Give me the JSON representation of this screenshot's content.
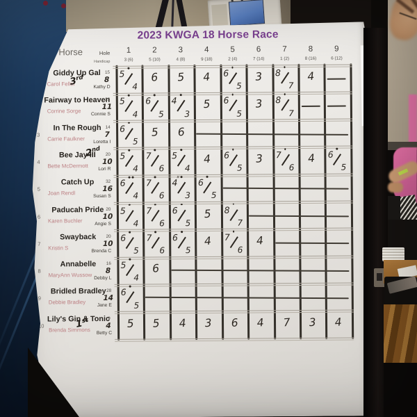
{
  "board": {
    "title": "2023 KWGA 18 Horse Race",
    "hash_header": "#",
    "horse_header": "Horse",
    "hole_label": "Hole",
    "handicap_label": "Handicap",
    "holes": [
      {
        "num": "1",
        "hcp": "3 (6)"
      },
      {
        "num": "2",
        "hcp": "5 (10)"
      },
      {
        "num": "3",
        "hcp": "4 (8)"
      },
      {
        "num": "4",
        "hcp": "9 (18)"
      },
      {
        "num": "5",
        "hcp": "2 (4)"
      },
      {
        "num": "6",
        "hcp": "7 (14)"
      },
      {
        "num": "7",
        "hcp": "1 (2)"
      },
      {
        "num": "8",
        "hcp": "8 (16)"
      },
      {
        "num": "9",
        "hcp": "6 (12)"
      }
    ],
    "rows": [
      {
        "pos": "1",
        "horse": "Giddy Up Gal",
        "owner": "Carol Feller",
        "jockey": "Kathy D",
        "place": "3rd",
        "index": "15",
        "strokes": "8",
        "cells": [
          {
            "t": "5/4",
            "dot": 1
          },
          {
            "t": "6"
          },
          {
            "t": "5"
          },
          {
            "t": "4"
          },
          {
            "t": "6/5",
            "dot": 1
          },
          {
            "t": "3"
          },
          {
            "t": "8/7",
            "dot": 1
          },
          {
            "t": "4"
          },
          {
            "dash": 1
          }
        ]
      },
      {
        "pos": "2",
        "horse": "Fairway to Heaven",
        "owner": "Corrine Sorge",
        "jockey": "Connie S",
        "index": "23",
        "strokes": "11",
        "cells": [
          {
            "t": "5/4",
            "dot": 1
          },
          {
            "t": "6/5",
            "dot": 1
          },
          {
            "t": "4/3",
            "dot": 1
          },
          {
            "t": "5"
          },
          {
            "t": "6/5",
            "dot": 1
          },
          {
            "t": "3"
          },
          {
            "t": "8/7",
            "dot": 1
          },
          {
            "dash": 1
          },
          {
            "dash": 1
          }
        ]
      },
      {
        "pos": "3",
        "horse": "In The Rough",
        "owner": "Carrie Faulkner",
        "jockey": "Loretta I",
        "index": "14",
        "strokes": "7",
        "cells": [
          {
            "t": "6/5",
            "dot": 1
          },
          {
            "t": "5"
          },
          {
            "t": "6"
          },
          {
            "strike": 1
          },
          {
            "strike": 1
          },
          {
            "strike": 1
          },
          {
            "strike": 1
          },
          {
            "strike": 1
          },
          {
            "strike": 1
          }
        ]
      },
      {
        "pos": "4",
        "horse": "Bee Jay III",
        "owner": "Bette McDermott",
        "jockey": "Lori R",
        "place": "2nd",
        "index": "20",
        "strokes": "10",
        "cells": [
          {
            "t": "5/4",
            "dot": 1
          },
          {
            "t": "7/6",
            "dot": 1
          },
          {
            "t": "5/4",
            "dot": 1
          },
          {
            "t": "4"
          },
          {
            "t": "6/5",
            "dot": 1
          },
          {
            "t": "3"
          },
          {
            "t": "7/6",
            "dot": 1
          },
          {
            "t": "4"
          },
          {
            "t": "6/5",
            "dot": 1
          }
        ]
      },
      {
        "pos": "5",
        "horse": "Catch Up",
        "owner": "Joan Rendl",
        "jockey": "Susan S",
        "index": "32",
        "strokes": "16",
        "cells": [
          {
            "t": "6/4",
            "dot": 2
          },
          {
            "t": "7/6",
            "dot": 1
          },
          {
            "t": "4/3",
            "dot": 1,
            "mark": "x"
          },
          {
            "t": "6/5",
            "dot": 1
          },
          {
            "strike": 1
          },
          {
            "strike": 1
          },
          {
            "strike": 1
          },
          {
            "strike": 1
          },
          {
            "strike": 1
          }
        ]
      },
      {
        "pos": "6",
        "horse": "Paducah Pride",
        "owner": "Karen Buchler",
        "jockey": "Angie S",
        "index": "20",
        "strokes": "10",
        "cells": [
          {
            "t": "5/4",
            "dot": 1
          },
          {
            "t": "7/6",
            "dot": 1
          },
          {
            "t": "6/5",
            "dot": 1
          },
          {
            "t": "5"
          },
          {
            "t": "8/7",
            "dot": 1
          },
          {
            "strike": 1
          },
          {
            "strike": 1
          },
          {
            "strike": 1
          },
          {
            "strike": 1
          }
        ]
      },
      {
        "pos": "7",
        "horse": "Swayback",
        "owner": "Kristin S",
        "jockey": "Brenda C",
        "index": "20",
        "strokes": "10",
        "cells": [
          {
            "t": "6/5",
            "dot": 1
          },
          {
            "t": "7/6",
            "dot": 1
          },
          {
            "t": "6/5",
            "dot": 1
          },
          {
            "t": "4"
          },
          {
            "t": "7/6",
            "dot": 1
          },
          {
            "t": "4"
          },
          {
            "strike": 1
          },
          {
            "strike": 1
          },
          {
            "strike": 1
          }
        ]
      },
      {
        "pos": "8",
        "horse": "Annabelle",
        "owner": "MaryAnn Wussow",
        "jockey": "Debby L",
        "index": "16",
        "strokes": "8",
        "cells": [
          {
            "t": "5/4",
            "dot": 1
          },
          {
            "t": "6"
          },
          {
            "strike": 1
          },
          {
            "strike": 1
          },
          {
            "strike": 1
          },
          {
            "strike": 1
          },
          {
            "strike": 1
          },
          {
            "strike": 1
          },
          {
            "strike": 1
          }
        ]
      },
      {
        "pos": "9",
        "horse": "Bridled Bradley",
        "owner": "Debbie Bradley",
        "jockey": "Jane E",
        "index": "28",
        "strokes": "14",
        "cells": [
          {
            "t": "6/5",
            "dot": 1
          },
          {
            "strike": 1
          },
          {
            "strike": 1
          },
          {
            "strike": 1
          },
          {
            "strike": 1
          },
          {
            "strike": 1
          },
          {
            "strike": 1
          },
          {
            "strike": 1
          },
          {
            "strike": 1
          }
        ]
      },
      {
        "pos": "10",
        "horse": "Lily's Gin & Tonic",
        "owner": "Brenda Simmons",
        "jockey": "Betty C",
        "place": "1st",
        "index": "9",
        "strokes": "4",
        "cells": [
          {
            "t": "5"
          },
          {
            "t": "5"
          },
          {
            "t": "4"
          },
          {
            "t": "3"
          },
          {
            "t": "6"
          },
          {
            "t": "4"
          },
          {
            "t": "7"
          },
          {
            "t": "3"
          },
          {
            "t": "4"
          }
        ]
      }
    ]
  },
  "colors": {
    "title_purple": "#7b4191",
    "owner_pink": "#bd8184",
    "marker_ink": "#2c2721",
    "paper": "#ebe9e5",
    "curtain_navy": "#17304e",
    "wall_beige": "#b0a48d",
    "shirt_pink": "#e26fa4",
    "skin": "#c99a72",
    "desk_wood": "#9d6e31",
    "monitor_screen_blue": "#5b82c4"
  }
}
